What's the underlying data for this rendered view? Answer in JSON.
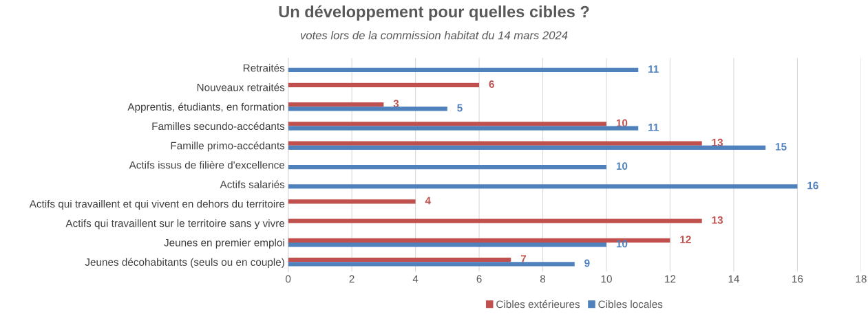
{
  "chart_data": {
    "type": "bar",
    "orientation": "horizontal",
    "title": "Un développement pour quelles cibles ?",
    "subtitle": "votes lors de la commission habitat du 14 mars 2024",
    "categories": [
      "Retraités",
      "Nouveaux retraités",
      "Apprentis, étudiants, en formation",
      "Familles secundo-accédants",
      "Famille primo-accédants",
      "Actifs issus de filière d'excellence",
      "Actifs salariés",
      "Actifs qui travaillent et qui vivent en dehors du territoire",
      "Actifs qui travaillent sur le territoire sans y vivre",
      "Jeunes en premier emploi",
      "Jeunes décohabitants (seuls ou en couple)"
    ],
    "series": [
      {
        "name": "Cibles extérieures",
        "color": "#c0504d",
        "values": [
          null,
          6,
          3,
          10,
          13,
          null,
          null,
          4,
          13,
          12,
          7
        ]
      },
      {
        "name": "Cibles locales",
        "color": "#4f81bd",
        "values": [
          11,
          null,
          5,
          11,
          15,
          10,
          16,
          null,
          null,
          10,
          9
        ]
      }
    ],
    "xlim": [
      0,
      18
    ],
    "xticks": [
      0,
      2,
      4,
      6,
      8,
      10,
      12,
      14,
      16,
      18
    ],
    "grid": "x",
    "legend": "bottom",
    "data_labels": true
  }
}
